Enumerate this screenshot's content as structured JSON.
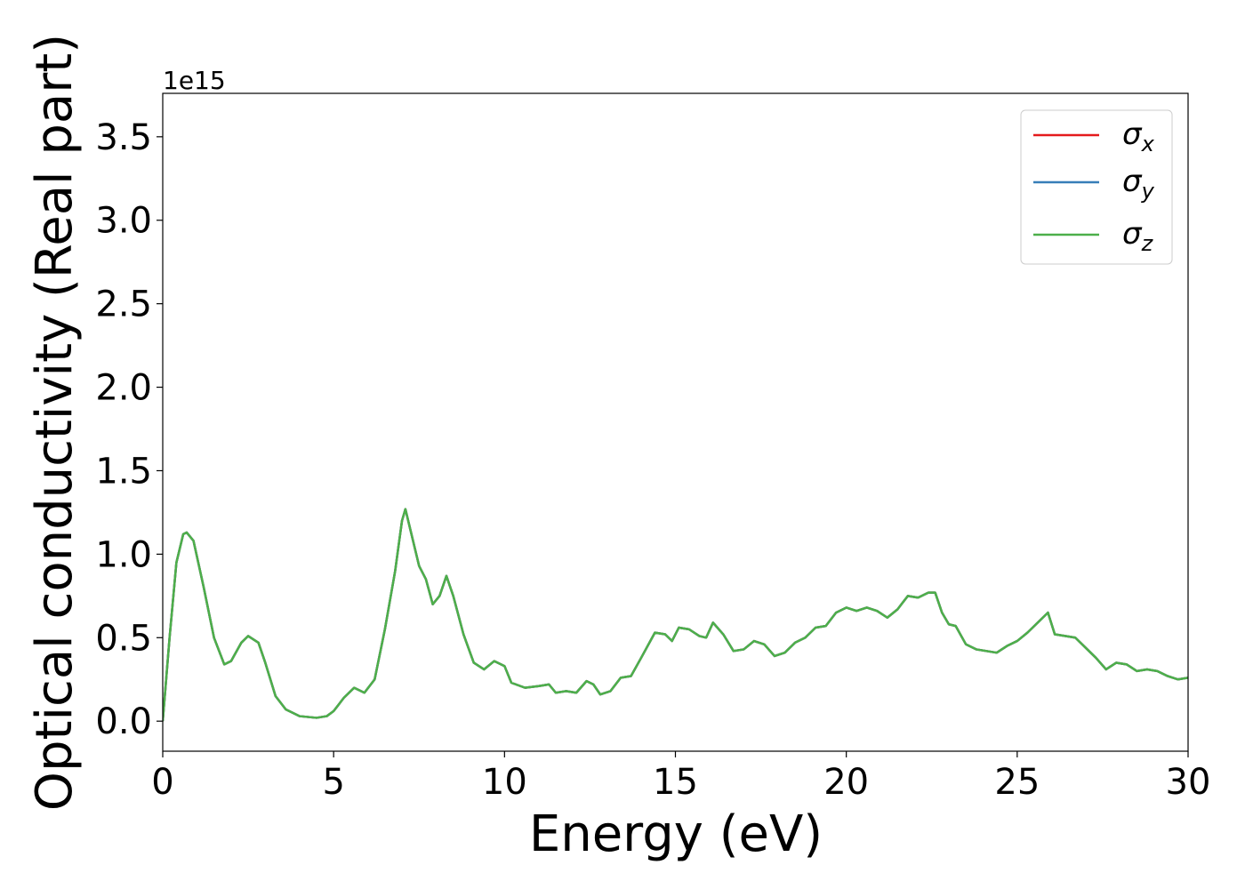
{
  "chart_data": {
    "type": "line",
    "xlabel": "Energy (eV)",
    "ylabel": "Optical conductivity (Real part)",
    "y_offset_text": "1e15",
    "xlim": [
      0,
      30
    ],
    "xticks": [
      0,
      5,
      10,
      15,
      20,
      25,
      30
    ],
    "ylim": [
      -0.18,
      3.76
    ],
    "yticks": [
      {
        "value": 0,
        "label": "0.0"
      },
      0.5,
      {
        "value": 1,
        "label": "1.0"
      },
      1.5,
      {
        "value": 2,
        "label": "2.0"
      },
      2.5,
      {
        "value": 3,
        "label": "3.0"
      },
      3.5
    ],
    "grid": false,
    "legend": "upper right",
    "x": [
      0,
      0.2,
      0.4,
      0.6,
      0.7,
      0.9,
      1.2,
      1.5,
      1.8,
      2.0,
      2.3,
      2.5,
      2.8,
      3.0,
      3.3,
      3.6,
      4.0,
      4.5,
      4.8,
      5.0,
      5.3,
      5.6,
      5.9,
      6.2,
      6.5,
      6.8,
      7.0,
      7.1,
      7.3,
      7.5,
      7.7,
      7.9,
      8.1,
      8.3,
      8.5,
      8.8,
      9.1,
      9.4,
      9.7,
      10.0,
      10.2,
      10.6,
      11.0,
      11.3,
      11.5,
      11.8,
      12.1,
      12.4,
      12.6,
      12.8,
      13.1,
      13.4,
      13.7,
      14.0,
      14.4,
      14.7,
      14.9,
      15.1,
      15.4,
      15.7,
      15.9,
      16.1,
      16.4,
      16.7,
      17.0,
      17.3,
      17.6,
      17.9,
      18.2,
      18.5,
      18.8,
      19.1,
      19.4,
      19.7,
      20.0,
      20.3,
      20.6,
      20.9,
      21.2,
      21.5,
      21.8,
      22.1,
      22.4,
      22.6,
      22.8,
      23.0,
      23.2,
      23.5,
      23.8,
      24.1,
      24.4,
      24.7,
      25.0,
      25.3,
      25.6,
      25.9,
      26.1,
      26.4,
      26.7,
      27.0,
      27.3,
      27.6,
      27.9,
      28.2,
      28.5,
      28.8,
      29.1,
      29.4,
      29.7,
      30.0
    ],
    "series": [
      {
        "name": "σx",
        "color": "#e41a1c",
        "values": [
          0,
          0.5,
          0.95,
          1.12,
          1.13,
          1.08,
          0.8,
          0.5,
          0.34,
          0.36,
          0.47,
          0.51,
          0.47,
          0.35,
          0.15,
          0.07,
          0.03,
          0.02,
          0.03,
          0.06,
          0.14,
          0.2,
          0.17,
          0.25,
          0.55,
          0.9,
          1.2,
          1.27,
          1.1,
          0.93,
          0.85,
          0.7,
          0.75,
          0.87,
          0.75,
          0.52,
          0.35,
          0.31,
          0.36,
          0.33,
          0.23,
          0.2,
          0.21,
          0.22,
          0.17,
          0.18,
          0.17,
          0.24,
          0.22,
          0.16,
          0.18,
          0.26,
          0.27,
          0.38,
          0.53,
          0.52,
          0.48,
          0.56,
          0.55,
          0.51,
          0.5,
          0.59,
          0.52,
          0.42,
          0.43,
          0.48,
          0.46,
          0.39,
          0.41,
          0.47,
          0.5,
          0.56,
          0.57,
          0.65,
          0.68,
          0.66,
          0.68,
          0.66,
          0.62,
          0.67,
          0.75,
          0.74,
          0.77,
          0.77,
          0.65,
          0.58,
          0.57,
          0.46,
          0.43,
          0.42,
          0.41,
          0.45,
          0.48,
          0.53,
          0.59,
          0.65,
          0.52,
          0.51,
          0.5,
          0.44,
          0.38,
          0.31,
          0.35,
          0.34,
          0.3,
          0.31,
          0.3,
          0.27,
          0.25,
          0.26
        ]
      },
      {
        "name": "σy",
        "color": "#377eb8",
        "values": [
          0,
          0.5,
          0.95,
          1.12,
          1.13,
          1.08,
          0.8,
          0.5,
          0.34,
          0.36,
          0.47,
          0.51,
          0.47,
          0.35,
          0.15,
          0.07,
          0.03,
          0.02,
          0.03,
          0.06,
          0.14,
          0.2,
          0.17,
          0.25,
          0.55,
          0.9,
          1.2,
          1.27,
          1.1,
          0.93,
          0.85,
          0.7,
          0.75,
          0.87,
          0.75,
          0.52,
          0.35,
          0.31,
          0.36,
          0.33,
          0.23,
          0.2,
          0.21,
          0.22,
          0.17,
          0.18,
          0.17,
          0.24,
          0.22,
          0.16,
          0.18,
          0.26,
          0.27,
          0.38,
          0.53,
          0.52,
          0.48,
          0.56,
          0.55,
          0.51,
          0.5,
          0.59,
          0.52,
          0.42,
          0.43,
          0.48,
          0.46,
          0.39,
          0.41,
          0.47,
          0.5,
          0.56,
          0.57,
          0.65,
          0.68,
          0.66,
          0.68,
          0.66,
          0.62,
          0.67,
          0.75,
          0.74,
          0.77,
          0.77,
          0.65,
          0.58,
          0.57,
          0.46,
          0.43,
          0.42,
          0.41,
          0.45,
          0.48,
          0.53,
          0.59,
          0.65,
          0.52,
          0.51,
          0.5,
          0.44,
          0.38,
          0.31,
          0.35,
          0.34,
          0.3,
          0.31,
          0.3,
          0.27,
          0.25,
          0.26
        ]
      },
      {
        "name": "σz",
        "color": "#4daf4a",
        "values": [
          0,
          0.5,
          0.95,
          1.12,
          1.13,
          1.08,
          0.8,
          0.5,
          0.34,
          0.36,
          0.47,
          0.51,
          0.47,
          0.35,
          0.15,
          0.07,
          0.03,
          0.02,
          0.03,
          0.06,
          0.14,
          0.2,
          0.17,
          0.25,
          0.55,
          0.9,
          1.2,
          1.27,
          1.1,
          0.93,
          0.85,
          0.7,
          0.75,
          0.87,
          0.75,
          0.52,
          0.35,
          0.31,
          0.36,
          0.33,
          0.23,
          0.2,
          0.21,
          0.22,
          0.17,
          0.18,
          0.17,
          0.24,
          0.22,
          0.16,
          0.18,
          0.26,
          0.27,
          0.38,
          0.53,
          0.52,
          0.48,
          0.56,
          0.55,
          0.51,
          0.5,
          0.59,
          0.52,
          0.42,
          0.43,
          0.48,
          0.46,
          0.39,
          0.41,
          0.47,
          0.5,
          0.56,
          0.57,
          0.65,
          0.68,
          0.66,
          0.68,
          0.66,
          0.62,
          0.67,
          0.75,
          0.74,
          0.77,
          0.77,
          0.65,
          0.58,
          0.57,
          0.46,
          0.43,
          0.42,
          0.41,
          0.45,
          0.48,
          0.53,
          0.59,
          0.65,
          0.52,
          0.51,
          0.5,
          0.44,
          0.38,
          0.31,
          0.35,
          0.34,
          0.3,
          0.31,
          0.3,
          0.27,
          0.25,
          0.26
        ]
      }
    ]
  }
}
